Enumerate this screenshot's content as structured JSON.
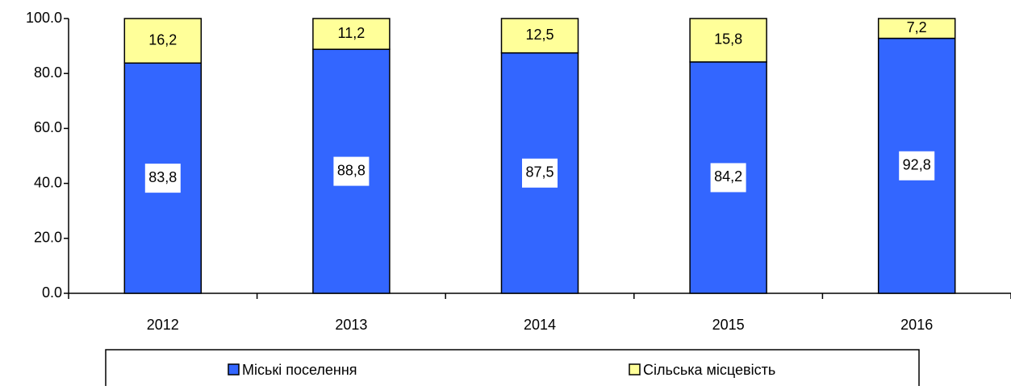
{
  "chart_data": {
    "type": "stacked_bar",
    "categories": [
      "2012",
      "2013",
      "2014",
      "2015",
      "2016"
    ],
    "series": [
      {
        "name": "Міські поселення",
        "color": "#3366ff",
        "values": [
          83.8,
          88.8,
          87.5,
          84.2,
          92.8
        ],
        "value_labels": [
          "83,8",
          "88,8",
          "87,5",
          "84,2",
          "92,8"
        ]
      },
      {
        "name": "Сільська місцевість",
        "color": "#ffff99",
        "values": [
          16.2,
          11.2,
          12.5,
          15.8,
          7.2
        ],
        "value_labels": [
          "16,2",
          "11,2",
          "12,5",
          "15,8",
          "7,2"
        ]
      }
    ],
    "ylim": [
      0,
      100
    ],
    "yticks": [
      {
        "value": 0,
        "label": "0.0"
      },
      {
        "value": 20,
        "label": "20.0"
      },
      {
        "value": 40,
        "label": "40.0"
      },
      {
        "value": 60,
        "label": "60.0"
      },
      {
        "value": 80,
        "label": "80.0"
      },
      {
        "value": 100,
        "label": "100.0"
      }
    ],
    "legend": "bottom"
  }
}
